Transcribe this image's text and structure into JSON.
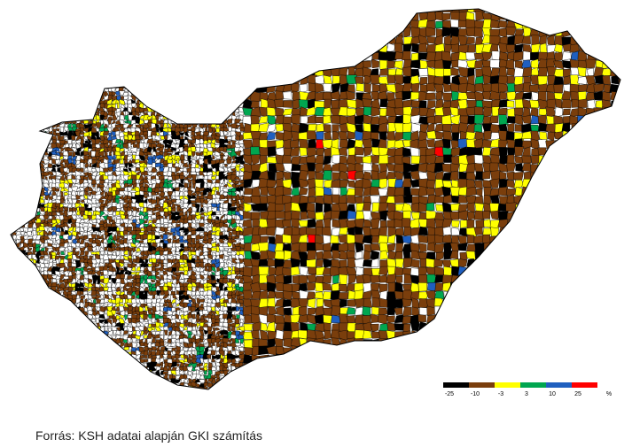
{
  "legend": {
    "colors": [
      "#000000",
      "#7a3e0c",
      "#ffff00",
      "#00a650",
      "#1f5fbf",
      "#ff0000"
    ],
    "ticks": [
      -25,
      -10,
      -3,
      3,
      10,
      25
    ],
    "unit": "%"
  },
  "source": "Forrás: KSH adatai alapján GKI számítás"
}
